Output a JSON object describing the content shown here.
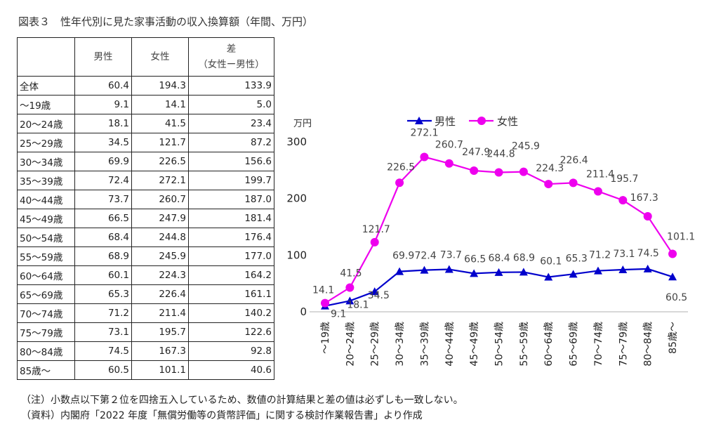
{
  "title": "図表３　性年代別に見た家事活動の収入換算額（年間、万円）",
  "table": {
    "headers": [
      "",
      "男性",
      "女性",
      "差",
      "（女性ー男性）"
    ],
    "rows": [
      [
        "全体",
        "60.4",
        "194.3",
        "133.9"
      ],
      [
        "～19歳",
        "9.1",
        "14.1",
        "5.0"
      ],
      [
        "20～24歳",
        "18.1",
        "41.5",
        "23.4"
      ],
      [
        "25～29歳",
        "34.5",
        "121.7",
        "87.2"
      ],
      [
        "30～34歳",
        "69.9",
        "226.5",
        "156.6"
      ],
      [
        "35～39歳",
        "72.4",
        "272.1",
        "199.7"
      ],
      [
        "40～44歳",
        "73.7",
        "260.7",
        "187.0"
      ],
      [
        "45～49歳",
        "66.5",
        "247.9",
        "181.4"
      ],
      [
        "50～54歳",
        "68.4",
        "244.8",
        "176.4"
      ],
      [
        "55～59歳",
        "68.9",
        "245.9",
        "177.0"
      ],
      [
        "60～64歳",
        "60.1",
        "224.3",
        "164.2"
      ],
      [
        "65～69歳",
        "65.3",
        "226.4",
        "161.1"
      ],
      [
        "70～74歳",
        "71.2",
        "211.4",
        "140.2"
      ],
      [
        "75～79歳",
        "73.1",
        "195.7",
        "122.6"
      ],
      [
        "80～84歳",
        "74.5",
        "167.3",
        "92.8"
      ],
      [
        "85歳～",
        "60.5",
        "101.1",
        "40.6"
      ]
    ]
  },
  "chart_data": {
    "type": "line",
    "ylabel": "万円",
    "ylim": [
      0,
      300
    ],
    "yticks": [
      "0",
      "100",
      "200",
      "300"
    ],
    "categories": [
      "～19歳",
      "20～24歳",
      "25～29歳",
      "30～34歳",
      "35～39歳",
      "40～44歳",
      "45～49歳",
      "50～54歳",
      "55～59歳",
      "60～64歳",
      "65～69歳",
      "70～74歳",
      "75～79歳",
      "80～84歳",
      "85歳～"
    ],
    "legend": "top",
    "series": [
      {
        "name": "男性",
        "color": "#0000cc",
        "marker": "triangle",
        "values": [
          9.1,
          18.1,
          34.5,
          69.9,
          72.4,
          73.7,
          66.5,
          68.4,
          68.9,
          60.1,
          65.3,
          71.2,
          73.1,
          74.5,
          60.5
        ],
        "labels": [
          "9.1",
          "18.1",
          "34.5",
          "69.9",
          "72.4",
          "73.7",
          "66.5",
          "68.4",
          "68.9",
          "60.1",
          "65.3",
          "71.2",
          "73.1",
          "74.5",
          "60.5"
        ]
      },
      {
        "name": "女性",
        "color": "#ee00ee",
        "marker": "circle",
        "values": [
          14.1,
          41.5,
          121.7,
          226.5,
          272.1,
          260.7,
          247.9,
          244.8,
          245.9,
          224.3,
          226.4,
          211.4,
          195.7,
          167.3,
          101.1
        ],
        "labels": [
          "14.1",
          "41.5",
          "121.7",
          "226.5",
          "272.1",
          "260.7",
          "247.9",
          "244.8",
          "245.9",
          "224.3",
          "226.4",
          "211.4",
          "195.7",
          "167.3",
          "101.1"
        ]
      }
    ]
  },
  "notes": [
    "（注）小数点以下第２位を四捨五入しているため、数値の計算結果と差の値は必ずしも一致しない。",
    "（資料）内閣府「2022 年度「無償労働等の貨幣評価」に関する検討作業報告書」より作成"
  ]
}
